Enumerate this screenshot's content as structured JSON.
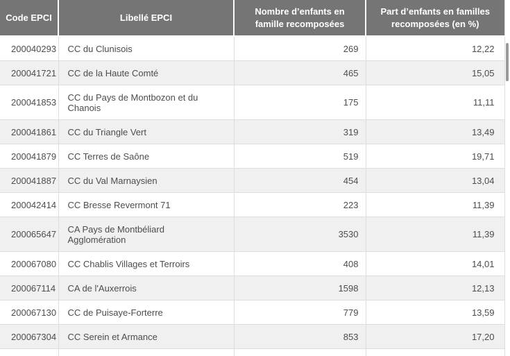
{
  "table": {
    "columns": [
      {
        "label": "Code EPCI"
      },
      {
        "label": "Libellé EPCI"
      },
      {
        "label": "Nombre d’enfants en famille recomposées"
      },
      {
        "label": "Part d’enfants en familles recomposées (en %)"
      }
    ],
    "rows": [
      {
        "code": "200040293",
        "libelle": "CC du Clunisois",
        "nombre": "269",
        "part": "12,22"
      },
      {
        "code": "200041721",
        "libelle": "CC de la Haute Comté",
        "nombre": "465",
        "part": "15,05"
      },
      {
        "code": "200041853",
        "libelle": "CC du Pays de Montbozon et du Chanois",
        "nombre": "175",
        "part": "11,11"
      },
      {
        "code": "200041861",
        "libelle": "CC du Triangle Vert",
        "nombre": "319",
        "part": "13,49"
      },
      {
        "code": "200041879",
        "libelle": "CC Terres de Saône",
        "nombre": "519",
        "part": "19,71"
      },
      {
        "code": "200041887",
        "libelle": "CC du Val Marnaysien",
        "nombre": "454",
        "part": "13,04"
      },
      {
        "code": "200042414",
        "libelle": "CC Bresse Revermont 71",
        "nombre": "223",
        "part": "11,39"
      },
      {
        "code": "200065647",
        "libelle": "CA Pays de Montbéliard Agglomération",
        "nombre": "3530",
        "part": "11,39"
      },
      {
        "code": "200067080",
        "libelle": "CC Chablis Villages et Terroirs",
        "nombre": "408",
        "part": "14,01"
      },
      {
        "code": "200067114",
        "libelle": "CA de l'Auxerrois",
        "nombre": "1598",
        "part": "12,13"
      },
      {
        "code": "200067130",
        "libelle": "CC de Puisaye-Forterre",
        "nombre": "779",
        "part": "13,59"
      },
      {
        "code": "200067304",
        "libelle": "CC Serein et Armance",
        "nombre": "853",
        "part": "17,20"
      }
    ]
  },
  "colors": {
    "header_bg": "#757575",
    "header_text": "#ffffff",
    "row_text": "#4d4d4d",
    "stripe": "#f0f0f0",
    "border": "#dddddd",
    "scrollbar_thumb": "#999999"
  }
}
